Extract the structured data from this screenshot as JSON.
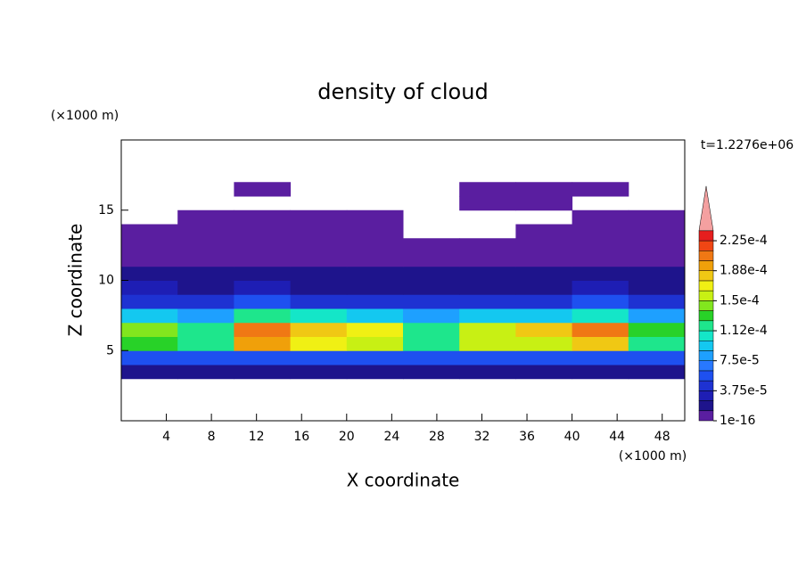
{
  "chart_data": {
    "type": "contour",
    "title": "density of cloud",
    "x_label": "X coordinate",
    "y_label": "Z coordinate",
    "x_unit": "(×1000 m)",
    "y_unit": "(×1000 m)",
    "time_label": "t=1.2276e+06",
    "xlim": [
      0,
      50
    ],
    "ylim": [
      0,
      20
    ],
    "xticks": [
      4,
      8,
      12,
      16,
      20,
      24,
      28,
      32,
      36,
      40,
      44,
      48
    ],
    "yticks": [
      5,
      10,
      15
    ],
    "levels": [
      1e-16,
      1.25e-05,
      2.5e-05,
      3.75e-05,
      5e-05,
      6.25e-05,
      7.5e-05,
      8.75e-05,
      0.0001,
      0.0001125,
      0.000125,
      0.0001375,
      0.00015,
      0.0001625,
      0.000175,
      0.0001875,
      0.0002,
      0.0002125,
      0.000225,
      0.0002375
    ],
    "colors": [
      "#5a1ea0",
      "#1e148c",
      "#1e1eb4",
      "#1e32d2",
      "#1e50f0",
      "#2878ff",
      "#1ea0ff",
      "#14c8f0",
      "#14e6c8",
      "#1ee68c",
      "#28d228",
      "#82e61e",
      "#c8f014",
      "#f0f014",
      "#f0c814",
      "#f0a00a",
      "#f07814",
      "#f04614",
      "#e61e1e",
      "#f4a0a0"
    ],
    "colorbar_ticks": [
      {
        "value": 1e-16,
        "label": "1e-16"
      },
      {
        "value": 3.75e-05,
        "label": "3.75e-5"
      },
      {
        "value": 7.5e-05,
        "label": "7.5e-5"
      },
      {
        "value": 0.0001125,
        "label": "1.12e-4"
      },
      {
        "value": 0.00015,
        "label": "1.5e-4"
      },
      {
        "value": 0.0001875,
        "label": "1.88e-4"
      },
      {
        "value": 0.000225,
        "label": "2.25e-4"
      }
    ],
    "field": [
      [
        null,
        null,
        null,
        null,
        null,
        null,
        null,
        null,
        null,
        null
      ],
      [
        null,
        null,
        null,
        null,
        null,
        null,
        null,
        null,
        null,
        null
      ],
      [
        null,
        null,
        null,
        null,
        null,
        null,
        null,
        null,
        null,
        null
      ],
      [
        2e-05,
        2e-05,
        2e-05,
        2e-05,
        2e-05,
        2e-05,
        2e-05,
        2e-05,
        2e-05,
        2e-05
      ],
      [
        6e-05,
        6e-05,
        6e-05,
        6e-05,
        6e-05,
        6e-05,
        6e-05,
        6e-05,
        6e-05,
        6e-05
      ],
      [
        0.00013,
        0.00012,
        0.00019,
        0.00017,
        0.00016,
        0.00012,
        0.00015,
        0.00016,
        0.00018,
        0.00012
      ],
      [
        0.00014,
        0.00012,
        0.00021,
        0.00018,
        0.00017,
        0.00012,
        0.00016,
        0.00018,
        0.00021,
        0.00013
      ],
      [
        9e-05,
        8e-05,
        0.00012,
        0.0001,
        9e-05,
        8e-05,
        9e-05,
        9e-05,
        0.00011,
        8e-05
      ],
      [
        4.5e-05,
        4e-05,
        5e-05,
        4.5e-05,
        4e-05,
        4e-05,
        4e-05,
        4e-05,
        5e-05,
        4e-05
      ],
      [
        2.5e-05,
        2e-05,
        2.5e-05,
        2e-05,
        2e-05,
        2e-05,
        2e-05,
        2e-05,
        2.5e-05,
        2e-05
      ],
      [
        1.5e-05,
        1.5e-05,
        1.5e-05,
        1.5e-05,
        1.5e-05,
        1.5e-05,
        1.5e-05,
        1.5e-05,
        1.5e-05,
        1.5e-05
      ],
      [
        8e-06,
        8e-06,
        8e-06,
        8e-06,
        8e-06,
        8e-06,
        8e-06,
        8e-06,
        8e-06,
        8e-06
      ],
      [
        5e-06,
        5e-06,
        5e-06,
        5e-06,
        5e-06,
        5e-06,
        5e-06,
        5e-06,
        5e-06,
        5e-06
      ],
      [
        5e-06,
        5e-06,
        5e-06,
        5e-06,
        5e-06,
        null,
        null,
        5e-06,
        5e-06,
        5e-06
      ],
      [
        null,
        5e-06,
        5e-06,
        5e-06,
        5e-06,
        null,
        null,
        null,
        5e-06,
        5e-06
      ],
      [
        null,
        null,
        null,
        null,
        null,
        null,
        5e-06,
        5e-06,
        null,
        null
      ],
      [
        null,
        null,
        5e-06,
        null,
        null,
        null,
        5e-06,
        5e-06,
        5e-06,
        null
      ],
      [
        null,
        null,
        null,
        null,
        null,
        null,
        null,
        null,
        null,
        null
      ],
      [
        null,
        null,
        null,
        null,
        null,
        null,
        null,
        null,
        null,
        null
      ],
      [
        null,
        null,
        null,
        null,
        null,
        null,
        null,
        null,
        null,
        null
      ]
    ]
  }
}
